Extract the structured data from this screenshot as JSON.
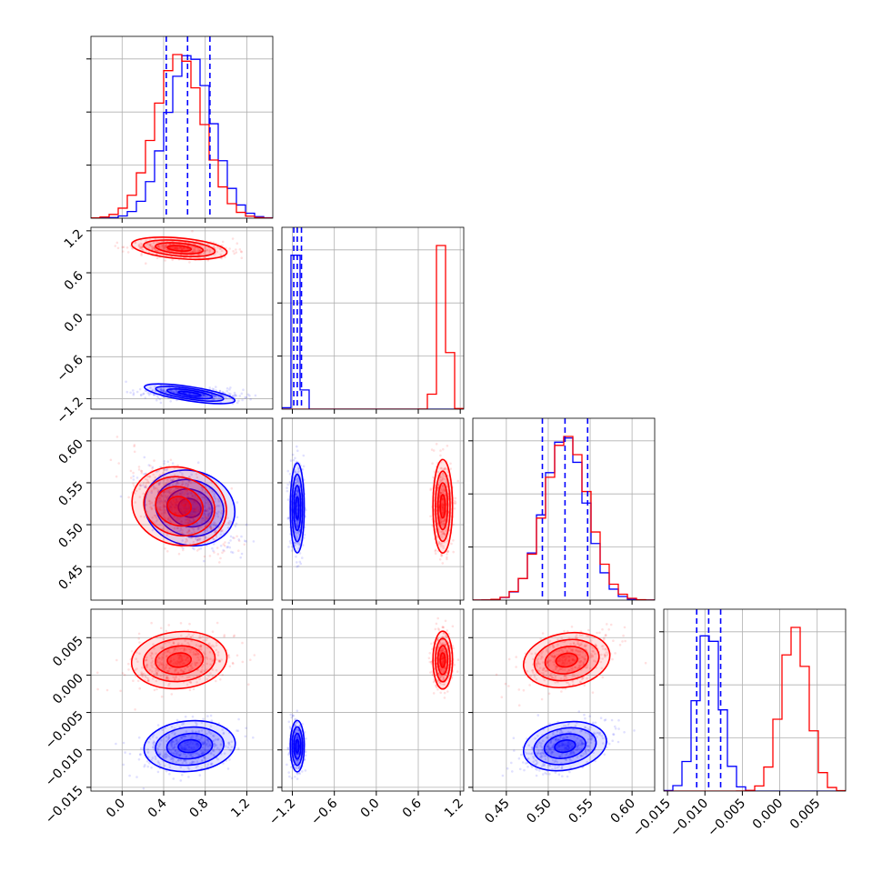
{
  "chart_data": {
    "type": "corner",
    "colors": {
      "series_a": "#0000ff",
      "series_b": "#ff0000",
      "grid": "#b0b0b0",
      "axis": "#000000"
    },
    "grid": true,
    "parameters": [
      {
        "index": 0,
        "range": [
          -0.3,
          1.45
        ],
        "ticks": [
          0.0,
          0.4,
          0.8,
          1.2
        ],
        "tick_labels": [
          "0.0",
          "0.4",
          "0.8",
          "1.2"
        ]
      },
      {
        "index": 1,
        "range": [
          -1.35,
          1.25
        ],
        "ticks": [
          -1.2,
          -0.6,
          0.0,
          0.6,
          1.2
        ],
        "tick_labels": [
          "−1.2",
          "−0.6",
          "0.0",
          "0.6",
          "1.2"
        ]
      },
      {
        "index": 2,
        "range": [
          0.41,
          0.627
        ],
        "ticks": [
          0.45,
          0.5,
          0.55,
          0.6
        ],
        "tick_labels": [
          "0.45",
          "0.50",
          "0.55",
          "0.60"
        ]
      },
      {
        "index": 3,
        "range": [
          -0.0155,
          0.0088
        ],
        "ticks": [
          -0.015,
          -0.01,
          -0.005,
          0.0,
          0.005
        ],
        "tick_labels": [
          "−0.015",
          "−0.010",
          "−0.005",
          "0.000",
          "0.005"
        ]
      }
    ],
    "series": [
      {
        "color": "series_a",
        "mean": [
          0.65,
          -1.13,
          0.52,
          -0.0095
        ],
        "std": [
          0.22,
          0.05,
          0.025,
          0.0016
        ]
      },
      {
        "color": "series_b",
        "mean": [
          0.55,
          0.95,
          0.522,
          0.002
        ],
        "std": [
          0.23,
          0.07,
          0.026,
          0.0018
        ]
      }
    ],
    "quantile_lines": {
      "color": "series_a",
      "values": [
        [
          0.425,
          0.63,
          0.845
        ],
        [
          -1.18,
          -1.13,
          -1.07
        ],
        [
          0.493,
          0.52,
          0.547
        ],
        [
          -0.0111,
          -0.0095,
          -0.0079
        ]
      ]
    }
  }
}
